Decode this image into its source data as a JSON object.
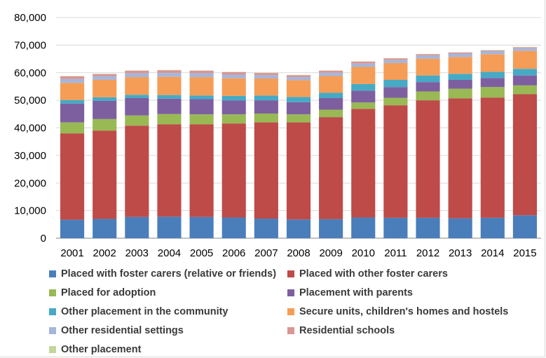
{
  "chart_data": {
    "type": "bar",
    "stacked": true,
    "categories": [
      "2001",
      "2002",
      "2003",
      "2004",
      "2005",
      "2006",
      "2007",
      "2008",
      "2009",
      "2010",
      "2011",
      "2012",
      "2013",
      "2014",
      "2015"
    ],
    "ylim": [
      0,
      80000
    ],
    "yticks": [
      0,
      10000,
      20000,
      30000,
      40000,
      50000,
      60000,
      70000,
      80000
    ],
    "ytick_labels": [
      "0",
      "10,000",
      "20,000",
      "30,000",
      "40,000",
      "50,000",
      "60,000",
      "70,000",
      "80,000"
    ],
    "grid": true,
    "legend_position": "bottom",
    "series": [
      {
        "name": "Placed with foster carers (relative or friends)",
        "color": "#4a7ebb",
        "values": [
          6700,
          7000,
          7700,
          7800,
          7700,
          7500,
          7100,
          6800,
          6900,
          7500,
          7400,
          7400,
          7200,
          7400,
          8300
        ]
      },
      {
        "name": "Placed with other foster carers",
        "color": "#be4b48",
        "values": [
          31300,
          32000,
          33100,
          33500,
          33600,
          34100,
          34900,
          35200,
          37000,
          39400,
          40800,
          42600,
          43500,
          43600,
          43900
        ]
      },
      {
        "name": "Placed for adoption",
        "color": "#98b954",
        "values": [
          4000,
          4200,
          3700,
          3700,
          3600,
          3300,
          3200,
          2900,
          2700,
          2300,
          2700,
          3200,
          3500,
          3800,
          3200
        ]
      },
      {
        "name": "Placement with parents",
        "color": "#7d5fa0",
        "values": [
          6800,
          6600,
          6300,
          5600,
          5500,
          5000,
          4800,
          4400,
          4200,
          4300,
          3900,
          3400,
          3200,
          3300,
          3600
        ]
      },
      {
        "name": "Other placement in the community",
        "color": "#46aac5",
        "values": [
          1300,
          1300,
          1200,
          1300,
          1300,
          1700,
          1700,
          1900,
          1900,
          2400,
          2600,
          2400,
          2200,
          2200,
          2400
        ]
      },
      {
        "name": "Secure units, children's homes and hostels",
        "color": "#f59d56",
        "values": [
          6200,
          6300,
          6400,
          6600,
          6700,
          6400,
          6200,
          6100,
          6100,
          6200,
          6100,
          6100,
          6100,
          6400,
          6500
        ]
      },
      {
        "name": "Other residential settings",
        "color": "#a5b6dc",
        "values": [
          1400,
          1300,
          1400,
          1400,
          1400,
          1300,
          1200,
          1100,
          1200,
          1200,
          1100,
          1100,
          1200,
          1100,
          1000
        ]
      },
      {
        "name": "Residential schools",
        "color": "#d99694",
        "values": [
          1000,
          800,
          900,
          1000,
          900,
          900,
          800,
          700,
          700,
          700,
          600,
          500,
          400,
          300,
          300
        ]
      },
      {
        "name": "Other placement",
        "color": "#c3d69b",
        "values": [
          100,
          100,
          100,
          100,
          100,
          100,
          100,
          100,
          100,
          100,
          100,
          100,
          100,
          100,
          100
        ]
      }
    ]
  }
}
